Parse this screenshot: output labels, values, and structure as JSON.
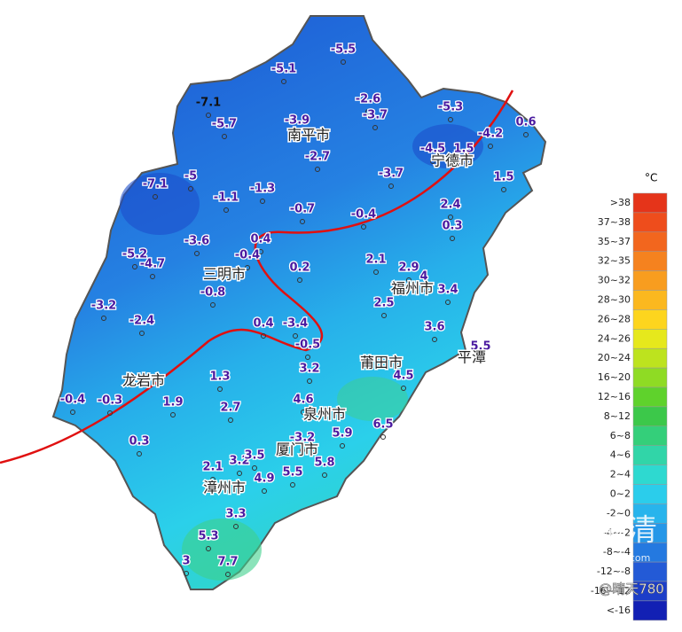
{
  "stations": [
    "-5.5",
    "-5.1",
    "-7.1",
    "-5.7",
    "-3.9",
    "-2.6",
    "-3.7",
    "-5.3",
    "-4.5",
    "1.5",
    "-4.2",
    "0.6",
    "-2.7",
    "-3.7",
    "1.5",
    "-7.1",
    "-5",
    "-1.1",
    "-1.3",
    "-0.7",
    "-0.4",
    "2.4",
    "0.3",
    "0.4",
    "-3.6",
    "-0.4",
    "-5.2",
    "-4.7",
    "2.1",
    "2.9",
    "4",
    "0.2",
    "-0.8",
    "3.4",
    "2.5",
    "-3.2",
    "-2.4",
    "0.4",
    "-3.4",
    "3.6",
    "-0.5",
    "5.5",
    "3.2",
    "4.5",
    "1.3",
    "-0.4",
    "-0.3",
    "1.9",
    "4.6",
    "2.7",
    "6.5",
    "5.9",
    "-3.2",
    "0.3",
    "3.2",
    "3.5",
    "5.8",
    "2.1",
    "5.5",
    "4.9",
    "3.3",
    "5.3",
    "3",
    "7.7"
  ],
  "cities": [
    "南平市",
    "宁德市",
    "三明市",
    "福州市",
    "莆田市",
    "平潭",
    "龙岩市",
    "泉州市",
    "厦门市",
    "漳州市"
  ],
  "legend": {
    "unit": "°C",
    "items": [
      {
        "label": ">38",
        "color": "#e5341a"
      },
      {
        "label": "37~38",
        "color": "#ee4d1c"
      },
      {
        "label": "35~37",
        "color": "#f2661e"
      },
      {
        "label": "32~35",
        "color": "#f5821f"
      },
      {
        "label": "30~32",
        "color": "#f89d1f"
      },
      {
        "label": "28~30",
        "color": "#fbb81f"
      },
      {
        "label": "26~28",
        "color": "#fdd51e"
      },
      {
        "label": "24~26",
        "color": "#e6e81c"
      },
      {
        "label": "20~24",
        "color": "#bde31e"
      },
      {
        "label": "16~20",
        "color": "#8fdb24"
      },
      {
        "label": "12~16",
        "color": "#5fd22c"
      },
      {
        "label": "8~12",
        "color": "#3cc84a"
      },
      {
        "label": "6~8",
        "color": "#34cf7a"
      },
      {
        "label": "4~6",
        "color": "#31d5a8"
      },
      {
        "label": "2~4",
        "color": "#2ed9d0"
      },
      {
        "label": "0~2",
        "color": "#2bcdeb"
      },
      {
        "label": "-2~0",
        "color": "#28b4ec"
      },
      {
        "label": "-4~-2",
        "color": "#2597e8"
      },
      {
        "label": "-8~-4",
        "color": "#2479e0"
      },
      {
        "label": "-12~-8",
        "color": "#235ad6"
      },
      {
        "label": "-16~-12",
        "color": "#1c3ec8"
      },
      {
        "label": "<-16",
        "color": "#1220b4"
      }
    ]
  },
  "watermark": {
    "brand": "看福清",
    "site": "www.fqqck.com",
    "author": "@晴天780"
  }
}
